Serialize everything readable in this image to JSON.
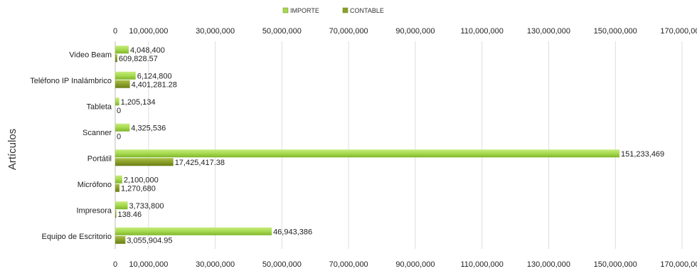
{
  "chart_data": {
    "type": "bar",
    "orientation": "horizontal",
    "ylabel": "Artículos",
    "xlabel": "",
    "title": "",
    "legend_position": "top-center",
    "grid": true,
    "xlim": [
      0,
      170000000
    ],
    "x_ticks": [
      0,
      10000000,
      30000000,
      50000000,
      70000000,
      90000000,
      110000000,
      130000000,
      150000000,
      170000000
    ],
    "x_tick_labels": [
      "0",
      "10,000,000",
      "30,000,000",
      "50,000,000",
      "70,000,000",
      "90,000,000",
      "110,000,000",
      "130,000,000",
      "150,000,000",
      "170,000,000"
    ],
    "categories": [
      "Video Beam",
      "Teléfono IP Inalámbrico",
      "Tableta",
      "Scanner",
      "Portátil",
      "Micrófono",
      "Impresora",
      "Equipo de Escritorio"
    ],
    "series": [
      {
        "name": "IMPORTE",
        "color": "#a6d94f",
        "values": [
          4048400,
          6124800,
          1205134,
          4325536,
          151233469,
          2100000,
          3733800,
          46943386
        ],
        "labels": [
          "4,048,400",
          "6,124,800",
          "1,205,134",
          "4,325,536",
          "151,233,469",
          "2,100,000",
          "3,733,800",
          "46,943,386"
        ]
      },
      {
        "name": "CONTABLE",
        "color": "#8aa02a",
        "values": [
          609828.57,
          4401281.28,
          0,
          0,
          17425417.38,
          1270680,
          138.46,
          3055904.95
        ],
        "labels": [
          "609,828.57",
          "4,401,281.28",
          "0",
          "0",
          "17,425,417.38",
          "1,270,680",
          "138.46",
          "3,055,904.95"
        ]
      }
    ]
  }
}
